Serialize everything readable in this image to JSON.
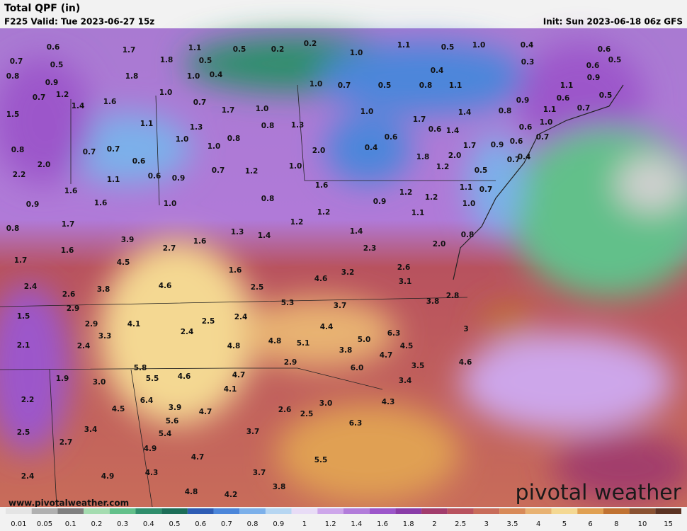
{
  "header": {
    "title": "Total QPF (in)",
    "valid": "F225 Valid: Tue 2023-06-27 15z",
    "init": "Init: Sun 2023-06-18 06z GFS"
  },
  "map": {
    "labels": [
      "0.6",
      "1.7",
      "1.8",
      "1.1",
      "0.5",
      "0.2",
      "0.2",
      "1.0",
      "1.1",
      "0.5",
      "1.0",
      "0.4",
      "0.6",
      "0.5",
      "0.7",
      "0.5",
      "0.8",
      "0.9",
      "1.8",
      "1.0",
      "0.5",
      "0.4",
      "0.3",
      "0.6",
      "0.9",
      "0.4",
      "1.0",
      "0.7",
      "0.5",
      "0.8",
      "1.1",
      "1.1",
      "0.7",
      "1.2",
      "1.6",
      "1.0",
      "0.7",
      "1.7",
      "1.0",
      "0.9",
      "0.6",
      "0.5",
      "1.4",
      "1.5",
      "1.1",
      "1.3",
      "0.8",
      "1.0",
      "1.7",
      "1.4",
      "0.8",
      "1.1",
      "0.7",
      "1.0",
      "0.6",
      "0.6",
      "1.4",
      "0.6",
      "1.3",
      "1.0",
      "1.0",
      "0.8",
      "0.8",
      "0.7",
      "0.7",
      "2.0",
      "0.4",
      "1.7",
      "0.9",
      "0.6",
      "0.7",
      "1.8",
      "2.0",
      "0.7",
      "0.4",
      "2.0",
      "0.6",
      "0.6",
      "0.9",
      "1.1",
      "0.7",
      "1.2",
      "1.0",
      "1.2",
      "0.5",
      "2.2",
      "1.6",
      "0.7",
      "1.2",
      "1.2",
      "1.6",
      "1.6",
      "1.0",
      "0.8",
      "1.1",
      "1.0",
      "0.9",
      "0.9",
      "1.2",
      "1.2",
      "1.7",
      "0.8",
      "1.1",
      "1.3",
      "1.4",
      "1.4",
      "0.8",
      "3.9",
      "2.7",
      "1.6",
      "2.0",
      "2.3",
      "1.6",
      "4.5",
      "1.7",
      "2.6",
      "4.6",
      "3.2",
      "1.6",
      "2.5",
      "3.1",
      "2.4",
      "2.6",
      "3.8",
      "4.6",
      "2.8",
      "3.8",
      "5.3",
      "3.7",
      "2.9",
      "1.5",
      "2.4",
      "2.5",
      "2.9",
      "4.1",
      "2.4",
      "4.4",
      "6.3",
      "3",
      "3.3",
      "4.8",
      "5.1",
      "5.0",
      "4.5",
      "2.1",
      "2.4",
      "4.8",
      "3.8",
      "4.7",
      "4.6",
      "5.8",
      "2.9",
      "6.0",
      "3.5",
      "1.9",
      "4.6",
      "5.5",
      "4.7",
      "3.4",
      "3.0",
      "4.1",
      "2.2",
      "6.4",
      "3.9",
      "4.3",
      "4.5",
      "4.7",
      "3.0",
      "2.6",
      "2.5",
      "5.6",
      "6.3",
      "3.4",
      "5.4",
      "3.7",
      "2.5",
      "2.7",
      "4.9",
      "4.7",
      "5.5",
      "4.3",
      "3.7",
      "2.4",
      "4.9",
      "3.8",
      "4.8",
      "4.2"
    ]
  },
  "legend": {
    "levels": [
      {
        "label": "0.01",
        "color": "#e4e4e4"
      },
      {
        "label": "0.05",
        "color": "#b0b0b0"
      },
      {
        "label": "0.1",
        "color": "#808080"
      },
      {
        "label": "0.2",
        "color": "#a4dcb0"
      },
      {
        "label": "0.3",
        "color": "#62c08a"
      },
      {
        "label": "0.4",
        "color": "#2f8e6c"
      },
      {
        "label": "0.5",
        "color": "#1c6e58"
      },
      {
        "label": "0.6",
        "color": "#2e5cb4"
      },
      {
        "label": "0.7",
        "color": "#4b86da"
      },
      {
        "label": "0.8",
        "color": "#7cb0ea"
      },
      {
        "label": "0.9",
        "color": "#b6d6f2"
      },
      {
        "label": "1",
        "color": "#e8dcf6"
      },
      {
        "label": "1.2",
        "color": "#cda6ea"
      },
      {
        "label": "1.4",
        "color": "#b27cda"
      },
      {
        "label": "1.6",
        "color": "#9c56ca"
      },
      {
        "label": "1.8",
        "color": "#8a3ca8"
      },
      {
        "label": "2",
        "color": "#a23c6c"
      },
      {
        "label": "2.5",
        "color": "#b8525e"
      },
      {
        "label": "3",
        "color": "#c86c5a"
      },
      {
        "label": "3.5",
        "color": "#d88a58"
      },
      {
        "label": "4",
        "color": "#e8b272"
      },
      {
        "label": "5",
        "color": "#f4d892"
      },
      {
        "label": "6",
        "color": "#e0a052"
      },
      {
        "label": "8",
        "color": "#c07232"
      },
      {
        "label": "10",
        "color": "#8a5232"
      },
      {
        "label": "15",
        "color": "#5a3222"
      }
    ]
  },
  "footer": {
    "url": "www.pivotalweather.com",
    "logo": "pivotal weather"
  }
}
